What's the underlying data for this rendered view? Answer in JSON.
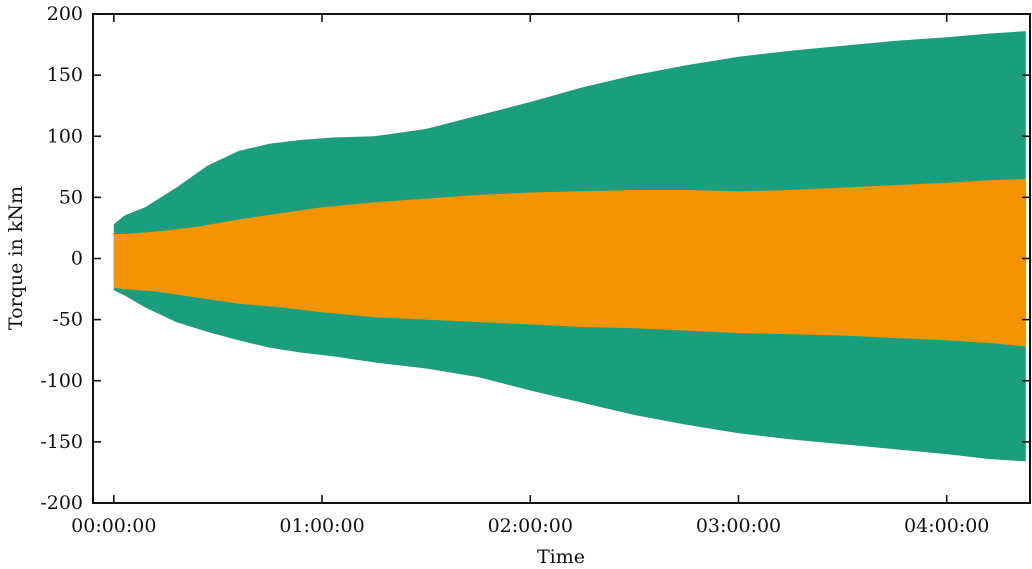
{
  "chart_data": {
    "type": "area",
    "xlabel": "Time",
    "ylabel": "Torque in kNm",
    "ylim": [
      -200,
      200
    ],
    "xlim_hours": [
      -0.1,
      4.4
    ],
    "grid": false,
    "legend": "none",
    "yticks": [
      200,
      150,
      100,
      50,
      0,
      -50,
      -100,
      -150,
      -200
    ],
    "yticklabels": [
      "200",
      "150",
      "100",
      "50",
      "0",
      "-50",
      "-100",
      "-150",
      "-200"
    ],
    "xticks_hours": [
      0,
      1,
      2,
      3,
      4
    ],
    "xticklabels": [
      "00:00:00",
      "01:00:00",
      "02:00:00",
      "03:00:00",
      "04:00:00"
    ],
    "series": [
      {
        "color": "#1a9e7e",
        "x_hours": [
          0,
          0.05,
          0.15,
          0.3,
          0.45,
          0.6,
          0.75,
          0.9,
          1.05,
          1.25,
          1.5,
          1.75,
          2.0,
          2.25,
          2.5,
          2.75,
          3.0,
          3.25,
          3.5,
          3.75,
          4.0,
          4.2,
          4.38
        ],
        "upper": [
          28,
          35,
          42,
          58,
          76,
          88,
          94,
          97,
          99,
          100,
          106,
          117,
          128,
          140,
          150,
          158,
          165,
          170,
          174,
          178,
          181,
          184,
          186
        ],
        "lower": [
          -26,
          -30,
          -40,
          -52,
          -60,
          -67,
          -73,
          -77,
          -80,
          -85,
          -90,
          -97,
          -108,
          -118,
          -128,
          -136,
          -143,
          -148,
          -152,
          -156,
          -160,
          -164,
          -166
        ]
      },
      {
        "color": "#f39400",
        "x_hours": [
          0,
          0.05,
          0.2,
          0.4,
          0.6,
          0.8,
          1.0,
          1.25,
          1.5,
          1.75,
          2.0,
          2.25,
          2.5,
          2.75,
          3.0,
          3.25,
          3.5,
          3.75,
          4.0,
          4.2,
          4.38
        ],
        "upper": [
          20,
          20,
          22,
          26,
          32,
          37,
          42,
          46,
          49,
          52,
          54,
          55,
          56,
          56,
          55,
          56,
          58,
          60,
          62,
          64,
          65
        ],
        "lower": [
          -24,
          -25,
          -27,
          -32,
          -37,
          -40,
          -44,
          -48,
          -50,
          -52,
          -54,
          -56,
          -57,
          -59,
          -61,
          -62,
          -63,
          -65,
          -67,
          -69,
          -72
        ]
      }
    ]
  }
}
